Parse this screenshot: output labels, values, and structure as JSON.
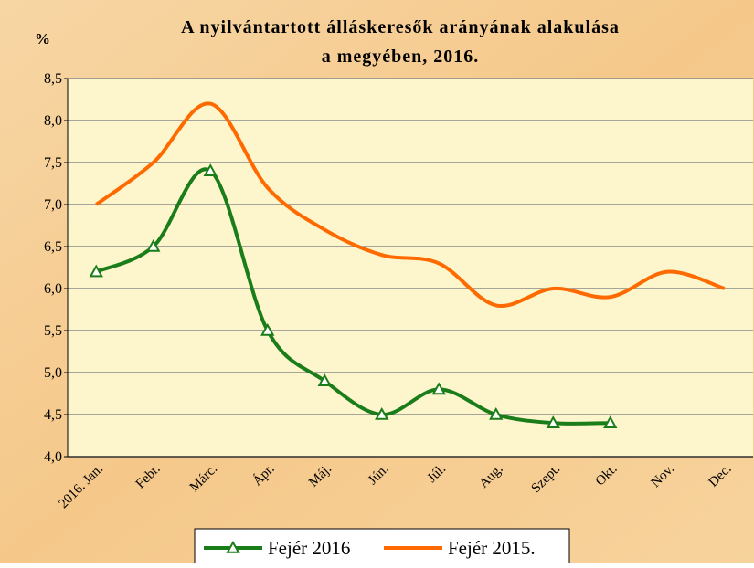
{
  "chart_data": {
    "type": "line",
    "title": [
      "A nyilvántartott álláskeresők arányának alakulása",
      "a megyében, 2016."
    ],
    "y_label": "%",
    "categories": [
      "2016. Jan.",
      "Febr.",
      "Márc.",
      "Ápr.",
      "Máj.",
      "Jún.",
      "Júl.",
      "Aug.",
      "Szept.",
      "Okt.",
      "Nov.",
      "Dec."
    ],
    "series": [
      {
        "name": "Fejér 2016",
        "color": "#1a7d1a",
        "marker": "triangle",
        "values": [
          6.2,
          6.5,
          7.4,
          5.5,
          4.9,
          4.5,
          4.8,
          4.5,
          4.4,
          4.4,
          null,
          null
        ]
      },
      {
        "name": "Fejér 2015.",
        "color": "#ff6a00",
        "values": [
          7.0,
          7.5,
          8.2,
          7.2,
          6.7,
          6.4,
          6.3,
          5.8,
          6.0,
          5.9,
          6.2,
          6.0
        ]
      }
    ],
    "ylim": [
      4.0,
      8.5
    ],
    "yticks": [
      {
        "value": 4.0,
        "label": "4,0"
      },
      {
        "value": 4.5,
        "label": "4,5"
      },
      {
        "value": 5.0,
        "label": "5,0"
      },
      {
        "value": 5.5,
        "label": "5,5"
      },
      {
        "value": 6.0,
        "label": "6,0"
      },
      {
        "value": 6.5,
        "label": "6,5"
      },
      {
        "value": 7.0,
        "label": "7,0"
      },
      {
        "value": 7.5,
        "label": "7,5"
      },
      {
        "value": 8.0,
        "label": "8,0"
      },
      {
        "value": 8.5,
        "label": "8,5"
      }
    ],
    "grid": true,
    "legend": "bottom"
  }
}
